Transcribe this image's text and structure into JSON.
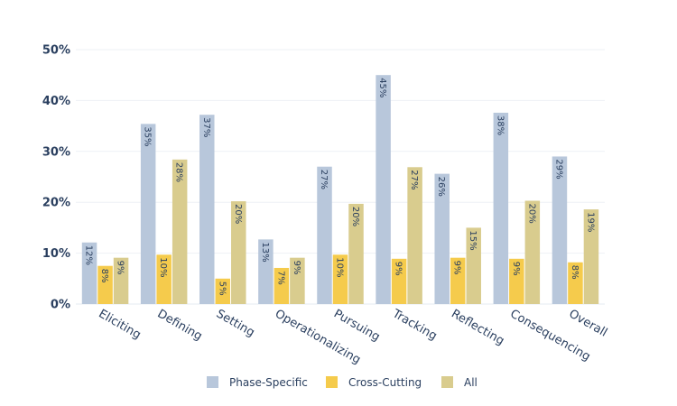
{
  "chart_data": {
    "type": "bar",
    "categories": [
      "Eliciting",
      "Defining",
      "Setting",
      "Operationalizing",
      "Pursuing",
      "Tracking",
      "Reflecting",
      "Consequencing",
      "Overall"
    ],
    "series": [
      {
        "name": "Phase-Specific",
        "color": "#b8c7db",
        "values": [
          12,
          35,
          37,
          13,
          27,
          45,
          26,
          38,
          29
        ],
        "labels": [
          "12%",
          "35%",
          "37%",
          "13%",
          "27%",
          "45%",
          "26%",
          "38%",
          "29%"
        ],
        "display_values": [
          12.1,
          35.4,
          37.2,
          12.7,
          27.0,
          45.0,
          25.6,
          37.6,
          29.0
        ]
      },
      {
        "name": "Cross-Cutting",
        "color": "#f5cb4c",
        "values": [
          8,
          10,
          5,
          7,
          10,
          9,
          9,
          9,
          8
        ],
        "labels": [
          "8%",
          "10%",
          "5%",
          "7%",
          "10%",
          "9%",
          "9%",
          "9%",
          "8%"
        ],
        "display_values": [
          7.5,
          9.7,
          5.0,
          7.1,
          9.7,
          8.9,
          9.1,
          8.9,
          8.2
        ]
      },
      {
        "name": "All",
        "color": "#d9cc8e",
        "values": [
          9,
          28,
          20,
          9,
          20,
          27,
          15,
          20,
          19
        ],
        "labels": [
          "9%",
          "28%",
          "20%",
          "9%",
          "20%",
          "27%",
          "15%",
          "20%",
          "19%"
        ],
        "display_values": [
          9.1,
          28.4,
          20.2,
          9.1,
          19.7,
          26.9,
          15.0,
          20.3,
          18.6
        ]
      }
    ],
    "yticks": [
      "0%",
      "10%",
      "20%",
      "30%",
      "40%",
      "50%"
    ],
    "ylim": [
      0,
      50
    ],
    "grid": true,
    "legend_position": "bottom"
  }
}
